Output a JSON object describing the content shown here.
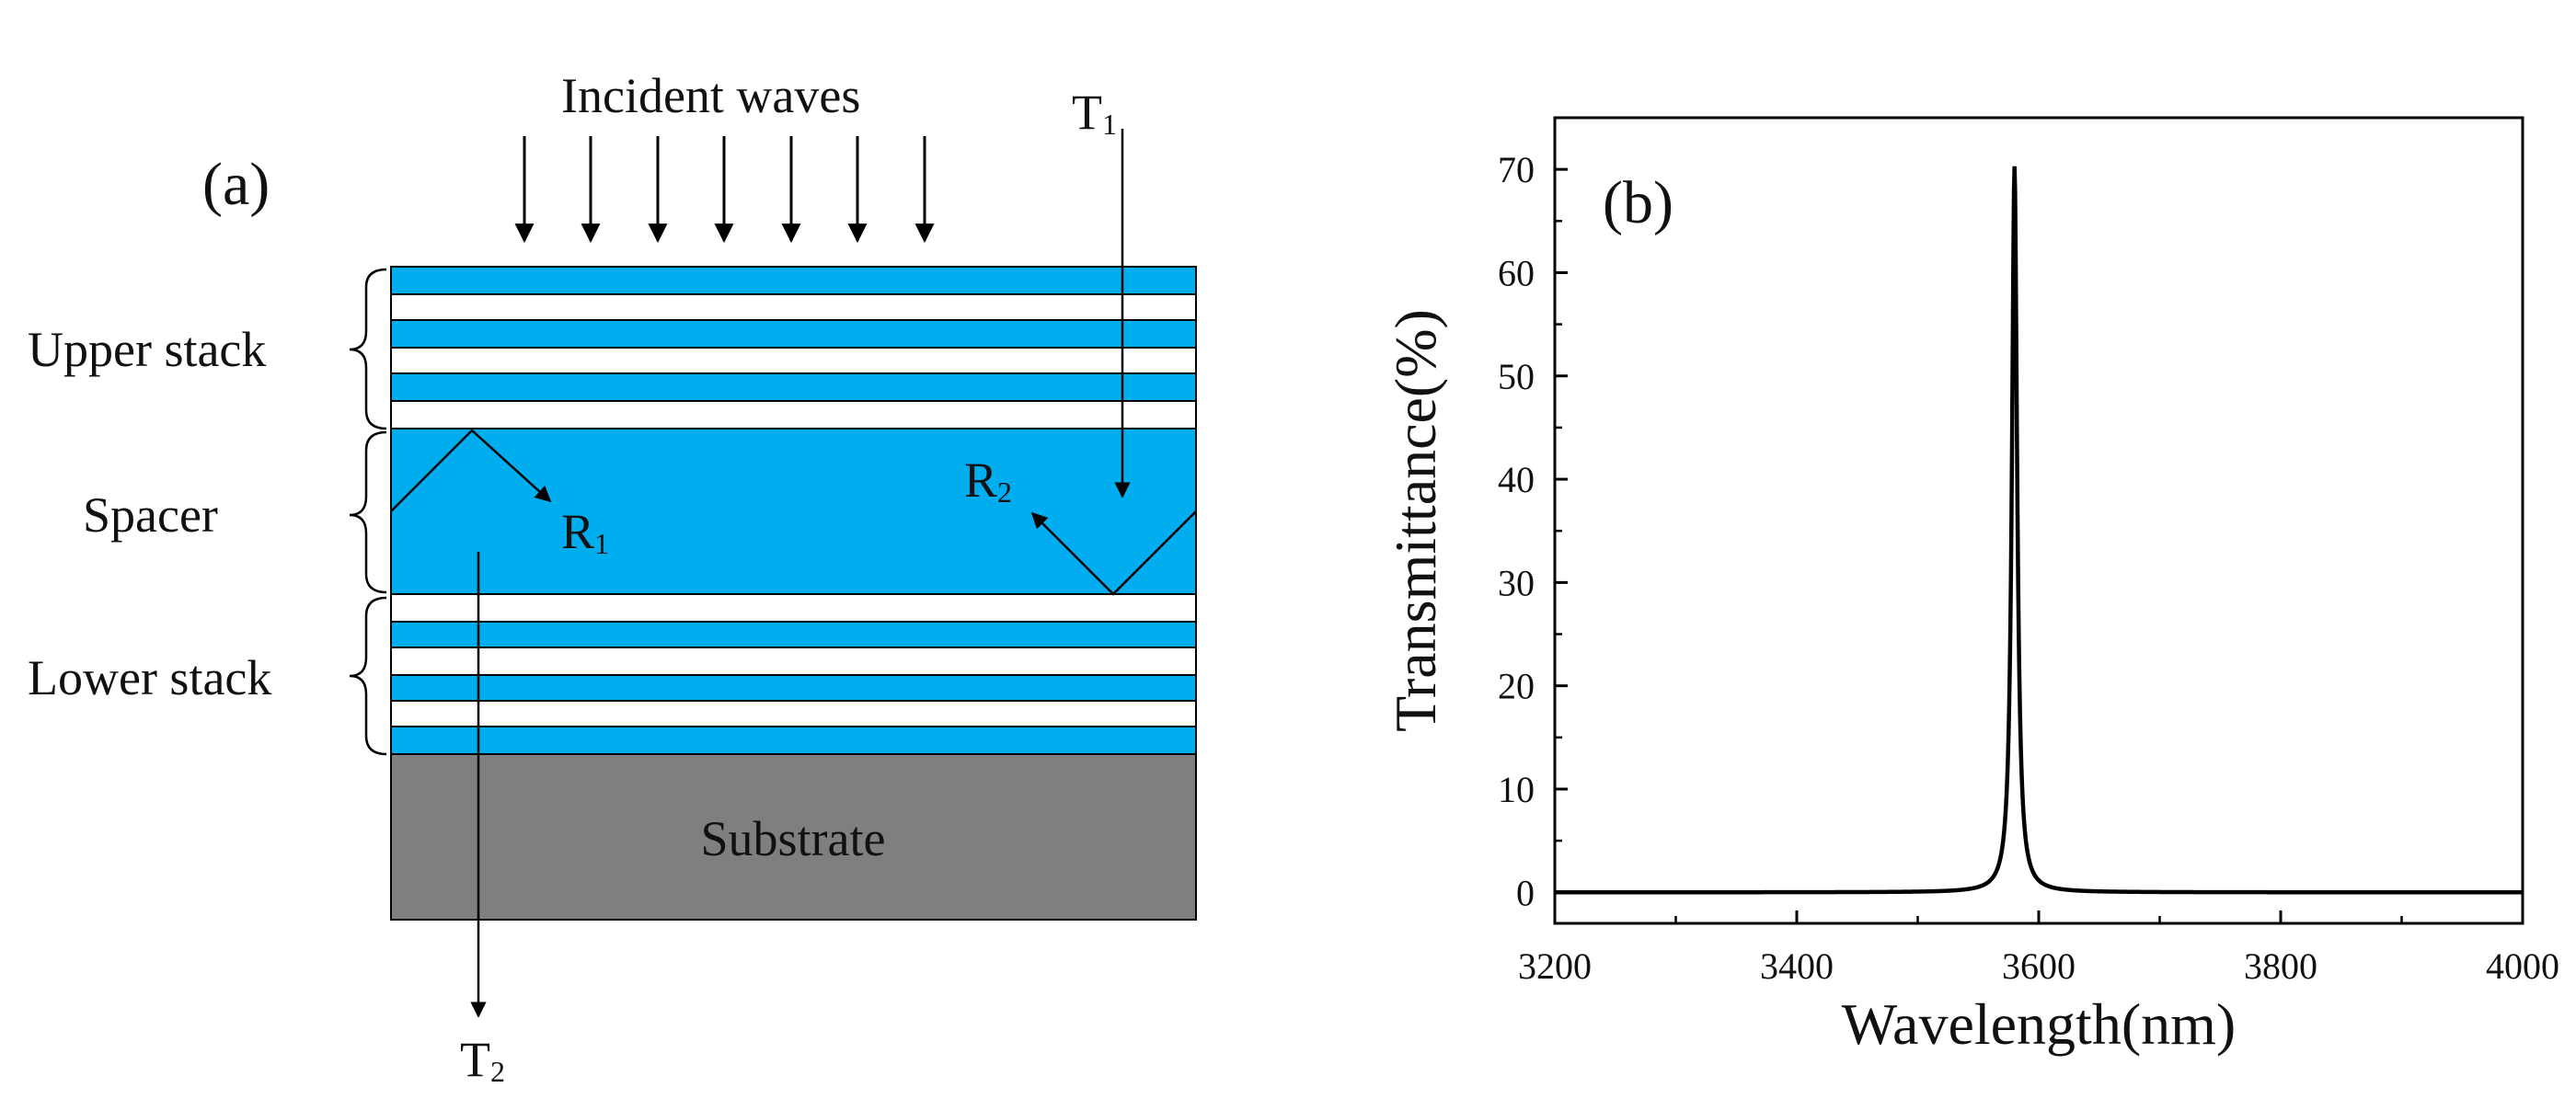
{
  "panel_a": {
    "label": "(a)",
    "incident_label": "Incident waves",
    "upper_stack_label": "Upper stack",
    "spacer_label": "Spacer",
    "lower_stack_label": "Lower stack",
    "substrate_label": "Substrate",
    "t1": {
      "main": "T",
      "sub": "1"
    },
    "t2": {
      "main": "T",
      "sub": "2"
    },
    "r1": {
      "main": "R",
      "sub": "1"
    },
    "r2": {
      "main": "R",
      "sub": "2"
    },
    "colors": {
      "layer": "#00aeef",
      "substrate": "#7f7f7f",
      "line": "#000000"
    }
  },
  "panel_b": {
    "label": "(b)"
  },
  "chart_data": {
    "type": "line",
    "title": "",
    "xlabel": "Wavelength(nm)",
    "ylabel": "Transmittance(%)",
    "xlim": [
      3200,
      4000
    ],
    "ylim": [
      -3,
      75
    ],
    "x_ticks": [
      3200,
      3400,
      3600,
      3800,
      4000
    ],
    "y_ticks": [
      0,
      10,
      20,
      30,
      40,
      50,
      60,
      70
    ],
    "series": [
      {
        "name": "Transmittance",
        "peak_wavelength": 3580,
        "peak_value": 70.3,
        "fwhm": 5.2,
        "baseline": 0,
        "color": "#000000"
      }
    ]
  }
}
